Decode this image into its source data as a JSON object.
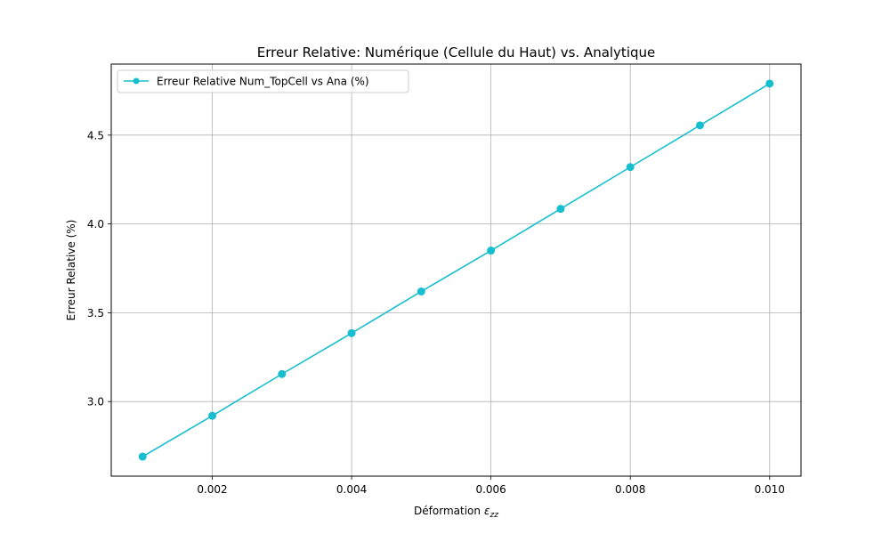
{
  "chart_data": {
    "type": "line",
    "title": "Erreur Relative: Numérique (Cellule du Haut) vs. Analytique",
    "xlabel": "Déformation",
    "xlabel_math": "ε",
    "xlabel_math_sub": "zz",
    "ylabel": "Erreur Relative (%)",
    "xlim": [
      0.00055,
      0.01045
    ],
    "ylim": [
      2.58,
      4.9
    ],
    "x_ticks": [
      0.002,
      0.004,
      0.006,
      0.008,
      0.01
    ],
    "x_tick_labels": [
      "0.002",
      "0.004",
      "0.006",
      "0.008",
      "0.010"
    ],
    "y_ticks": [
      3.0,
      3.5,
      4.0,
      4.5
    ],
    "y_tick_labels": [
      "3.0",
      "3.5",
      "4.0",
      "4.5"
    ],
    "grid": true,
    "legend_placement": "top-left",
    "series": [
      {
        "name": "Erreur Relative Num_TopCell vs Ana (%)",
        "color": "#17becf",
        "marker": "circle",
        "x": [
          0.001,
          0.002,
          0.003,
          0.004,
          0.005,
          0.006,
          0.007,
          0.008,
          0.009,
          0.01
        ],
        "y": [
          2.69,
          2.92,
          3.155,
          3.385,
          3.62,
          3.85,
          4.085,
          4.32,
          4.555,
          4.79
        ]
      }
    ]
  }
}
